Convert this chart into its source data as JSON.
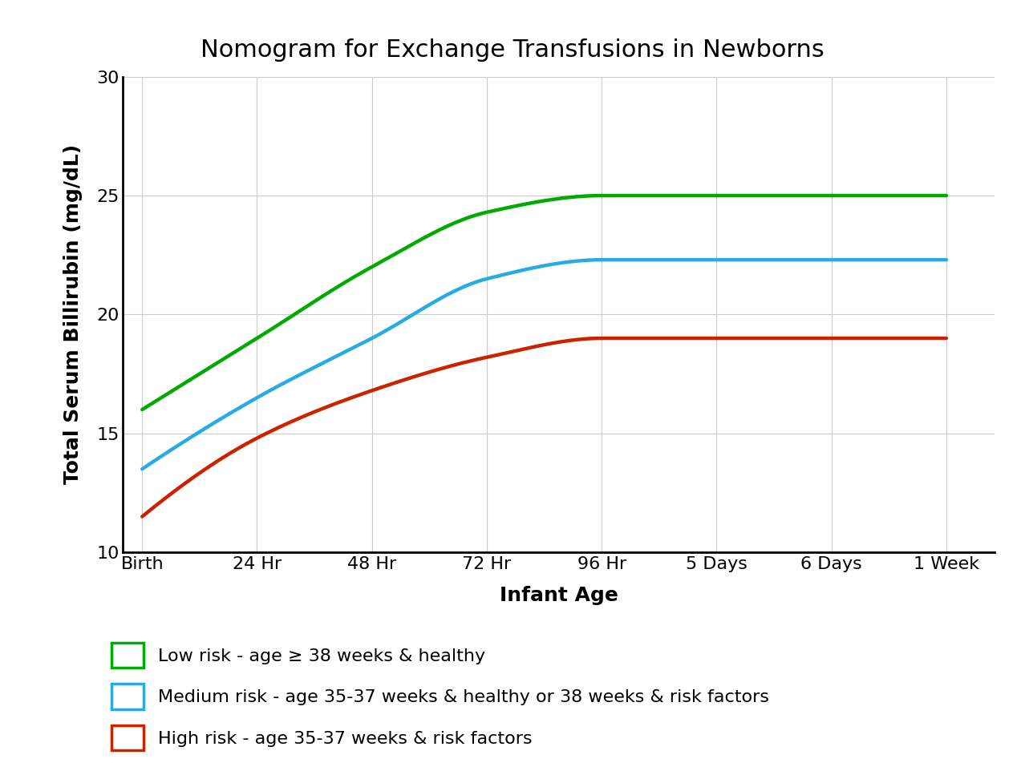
{
  "title": "Nomogram for Exchange Transfusions in Newborns",
  "xlabel": "Infant Age",
  "ylabel": "Total Serum Billirubin (mg/dL)",
  "x_labels": [
    "Birth",
    "24 Hr",
    "48 Hr",
    "72 Hr",
    "96 Hr",
    "5 Days",
    "6 Days",
    "1 Week"
  ],
  "x_values": [
    0,
    24,
    48,
    72,
    96,
    120,
    144,
    168
  ],
  "ylim": [
    10,
    30
  ],
  "yticks": [
    10,
    15,
    20,
    25,
    30
  ],
  "background_color": "#ffffff",
  "grid_color": "#cccccc",
  "low_risk": {
    "color": "#00aa00",
    "values": [
      16.0,
      19.0,
      22.0,
      24.3,
      25.0,
      25.0,
      25.0,
      25.0
    ],
    "label": "Low risk - age ≥ 38 weeks & healthy"
  },
  "medium_risk": {
    "color": "#29abe2",
    "values": [
      13.5,
      16.5,
      19.0,
      21.5,
      22.3,
      22.3,
      22.3,
      22.3
    ],
    "label": "Medium risk - age 35-37 weeks & healthy or 38 weeks & risk factors"
  },
  "high_risk": {
    "color": "#cc2200",
    "values": [
      11.5,
      14.8,
      16.8,
      18.2,
      19.0,
      19.0,
      19.0,
      19.0
    ],
    "label": "High risk - age 35-37 weeks & risk factors"
  },
  "title_fontsize": 22,
  "axis_label_fontsize": 18,
  "tick_fontsize": 16,
  "legend_fontsize": 16,
  "line_width": 3.2
}
